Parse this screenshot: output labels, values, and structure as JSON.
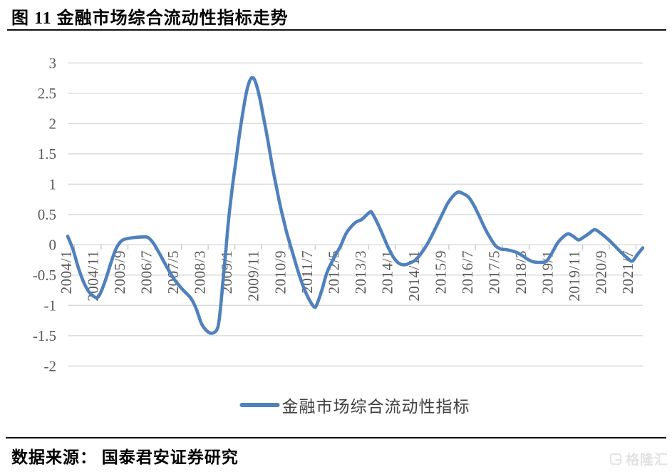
{
  "page": {
    "source_note": "数据来源： 国泰君安证券研究",
    "watermark": "格隆汇"
  },
  "style": {
    "line_color": "#4F81BD",
    "grid_color": "#D9D9D9",
    "tick_color": "#C6C6C6",
    "axis_text_color": "#595959",
    "watermark_color": "#E3E3E3"
  },
  "chart_data": {
    "type": "line",
    "title": "图 11  金融市场综合流动性指标走势",
    "legend": "金融市场综合流动性指标",
    "legend_position": "bottom",
    "grid": true,
    "ylim": [
      -2,
      3
    ],
    "y_ticks": [
      3,
      2.5,
      2,
      1.5,
      1,
      0.5,
      0,
      -0.5,
      -1,
      -1.5,
      -2
    ],
    "x_range": [
      "2004/1",
      "2021/12"
    ],
    "x_tick_labels": [
      "2004/1",
      "2004/11",
      "2005/9",
      "2006/7",
      "2007/5",
      "2008/3",
      "2009/1",
      "2009/11",
      "2010/9",
      "2011/7",
      "2012/5",
      "2013/3",
      "2014/1",
      "2014/11",
      "2015/9",
      "2016/7",
      "2017/5",
      "2018/3",
      "2019/1",
      "2019/11",
      "2020/9",
      "2021/7"
    ],
    "series": [
      {
        "name": "金融市场综合流动性指标",
        "color": "#4F81BD",
        "points": [
          [
            "2004/1",
            0.14
          ],
          [
            "2004/3",
            -0.08
          ],
          [
            "2004/5",
            -0.38
          ],
          [
            "2004/7",
            -0.62
          ],
          [
            "2004/9",
            -0.78
          ],
          [
            "2004/11",
            -0.86
          ],
          [
            "2004/12",
            -0.87
          ],
          [
            "2005/1",
            -0.82
          ],
          [
            "2005/3",
            -0.6
          ],
          [
            "2005/5",
            -0.32
          ],
          [
            "2005/7",
            -0.07
          ],
          [
            "2005/9",
            0.06
          ],
          [
            "2005/11",
            0.1
          ],
          [
            "2006/2",
            0.12
          ],
          [
            "2006/5",
            0.13
          ],
          [
            "2006/7",
            0.12
          ],
          [
            "2006/9",
            0.03
          ],
          [
            "2006/11",
            -0.12
          ],
          [
            "2007/1",
            -0.28
          ],
          [
            "2007/3",
            -0.44
          ],
          [
            "2007/5",
            -0.58
          ],
          [
            "2007/8",
            -0.74
          ],
          [
            "2007/11",
            -0.88
          ],
          [
            "2008/1",
            -1.05
          ],
          [
            "2008/3",
            -1.3
          ],
          [
            "2008/5",
            -1.42
          ],
          [
            "2008/7",
            -1.46
          ],
          [
            "2008/9",
            -1.38
          ],
          [
            "2008/10",
            -1.1
          ],
          [
            "2008/11",
            -0.62
          ],
          [
            "2008/12",
            -0.15
          ],
          [
            "2009/1",
            0.35
          ],
          [
            "2009/2",
            0.75
          ],
          [
            "2009/3",
            1.1
          ],
          [
            "2009/4",
            1.42
          ],
          [
            "2009/5",
            1.75
          ],
          [
            "2009/6",
            2.05
          ],
          [
            "2009/7",
            2.32
          ],
          [
            "2009/8",
            2.55
          ],
          [
            "2009/9",
            2.7
          ],
          [
            "2009/10",
            2.76
          ],
          [
            "2009/11",
            2.71
          ],
          [
            "2009/12",
            2.57
          ],
          [
            "2010/1",
            2.38
          ],
          [
            "2010/2",
            2.15
          ],
          [
            "2010/3",
            1.92
          ],
          [
            "2010/4",
            1.68
          ],
          [
            "2010/5",
            1.42
          ],
          [
            "2010/6",
            1.18
          ],
          [
            "2010/7",
            0.96
          ],
          [
            "2010/8",
            0.74
          ],
          [
            "2010/9",
            0.54
          ],
          [
            "2010/10",
            0.36
          ],
          [
            "2010/11",
            0.18
          ],
          [
            "2011/1",
            -0.12
          ],
          [
            "2011/3",
            -0.42
          ],
          [
            "2011/5",
            -0.68
          ],
          [
            "2011/7",
            -0.88
          ],
          [
            "2011/9",
            -1.02
          ],
          [
            "2011/10",
            -1.0
          ],
          [
            "2011/12",
            -0.75
          ],
          [
            "2012/2",
            -0.45
          ],
          [
            "2012/5",
            -0.18
          ],
          [
            "2012/7",
            -0.02
          ],
          [
            "2012/9",
            0.18
          ],
          [
            "2012/11",
            0.3
          ],
          [
            "2013/1",
            0.38
          ],
          [
            "2013/3",
            0.42
          ],
          [
            "2013/6",
            0.54
          ],
          [
            "2013/7",
            0.51
          ],
          [
            "2013/9",
            0.34
          ],
          [
            "2013/11",
            0.14
          ],
          [
            "2014/1",
            -0.06
          ],
          [
            "2014/3",
            -0.22
          ],
          [
            "2014/5",
            -0.31
          ],
          [
            "2014/7",
            -0.33
          ],
          [
            "2014/9",
            -0.3
          ],
          [
            "2014/11",
            -0.25
          ],
          [
            "2015/1",
            -0.15
          ],
          [
            "2015/3",
            -0.02
          ],
          [
            "2015/5",
            0.14
          ],
          [
            "2015/7",
            0.32
          ],
          [
            "2015/9",
            0.5
          ],
          [
            "2015/11",
            0.68
          ],
          [
            "2016/1",
            0.8
          ],
          [
            "2016/3",
            0.87
          ],
          [
            "2016/5",
            0.84
          ],
          [
            "2016/7",
            0.78
          ],
          [
            "2016/9",
            0.64
          ],
          [
            "2016/11",
            0.46
          ],
          [
            "2017/1",
            0.27
          ],
          [
            "2017/3",
            0.11
          ],
          [
            "2017/5",
            -0.02
          ],
          [
            "2017/7",
            -0.07
          ],
          [
            "2017/9",
            -0.08
          ],
          [
            "2017/11",
            -0.1
          ],
          [
            "2018/1",
            -0.13
          ],
          [
            "2018/3",
            -0.18
          ],
          [
            "2018/5",
            -0.24
          ],
          [
            "2018/7",
            -0.28
          ],
          [
            "2018/10",
            -0.29
          ],
          [
            "2018/12",
            -0.27
          ],
          [
            "2019/2",
            -0.14
          ],
          [
            "2019/4",
            0.02
          ],
          [
            "2019/6",
            0.12
          ],
          [
            "2019/8",
            0.18
          ],
          [
            "2019/10",
            0.14
          ],
          [
            "2019/12",
            0.08
          ],
          [
            "2020/2",
            0.13
          ],
          [
            "2020/4",
            0.19
          ],
          [
            "2020/6",
            0.25
          ],
          [
            "2020/8",
            0.2
          ],
          [
            "2020/10",
            0.13
          ],
          [
            "2020/12",
            0.05
          ],
          [
            "2021/2",
            -0.04
          ],
          [
            "2021/4",
            -0.13
          ],
          [
            "2021/6",
            -0.21
          ],
          [
            "2021/8",
            -0.27
          ],
          [
            "2021/10",
            -0.16
          ],
          [
            "2021/12",
            -0.05
          ]
        ]
      }
    ]
  }
}
